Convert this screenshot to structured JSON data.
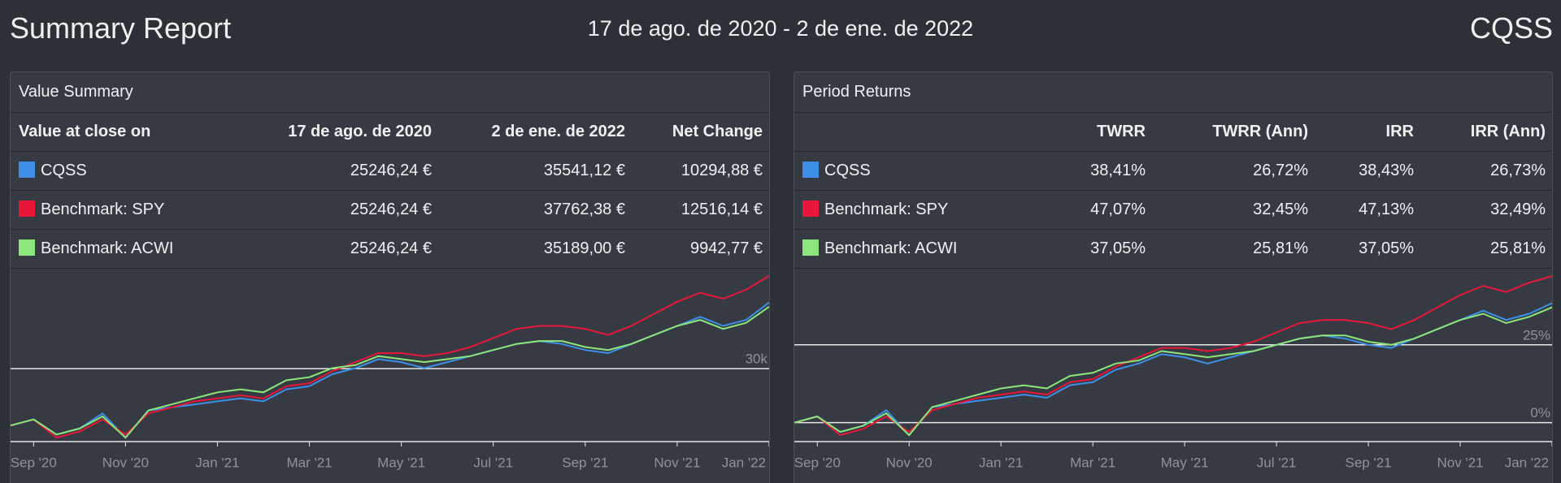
{
  "header": {
    "title": "Summary Report",
    "date_range": "17 de ago. de 2020 - 2 de ene. de 2022",
    "portfolio": "CQSS"
  },
  "value_summary": {
    "title": "Value Summary",
    "columns": [
      "Value at close on",
      "17 de ago. de 2020",
      "2 de ene. de 2022",
      "Net Change"
    ],
    "colors": [
      "#3d8fe8",
      "#e8173a",
      "#8de67a"
    ],
    "rows": [
      [
        "CQSS",
        "25246,24 €",
        "35541,12 €",
        "10294,88 €"
      ],
      [
        "Benchmark: SPY",
        "25246,24 €",
        "37762,38 €",
        "12516,14 €"
      ],
      [
        "Benchmark: ACWI",
        "25246,24 €",
        "35189,00 €",
        "9942,77 €"
      ]
    ]
  },
  "period_returns": {
    "title": "Period Returns",
    "columns": [
      "TWRR",
      "TWRR (Ann)",
      "IRR",
      "IRR (Ann)"
    ],
    "colors": [
      "#3d8fe8",
      "#e8173a",
      "#8de67a"
    ],
    "rows": [
      [
        "CQSS",
        "38,41%",
        "26,72%",
        "38,43%",
        "26,73%"
      ],
      [
        "Benchmark: SPY",
        "47,07%",
        "32,45%",
        "47,13%",
        "32,49%"
      ],
      [
        "Benchmark: ACWI",
        "37,05%",
        "25,81%",
        "37,05%",
        "25,81%"
      ]
    ]
  },
  "chart_data": [
    {
      "type": "line",
      "categories": [
        null,
        "Sep '20",
        null,
        null,
        null,
        "Nov '20",
        null,
        null,
        null,
        "Jan '21",
        null,
        null,
        null,
        "Mar '21",
        null,
        null,
        null,
        "May '21",
        null,
        null,
        null,
        "Jul '21",
        null,
        null,
        null,
        "Sep '21",
        null,
        null,
        null,
        "Nov '21",
        null,
        null,
        null,
        "Jan '22"
      ],
      "ylim": [
        23900,
        38500
      ],
      "yticks": [
        {
          "value": 30000,
          "label": "30k"
        }
      ],
      "grid": true,
      "series": [
        {
          "name": "CQSS",
          "color": "#3d8fe8",
          "values": [
            25246,
            25751,
            24489,
            24994,
            26256,
            24236,
            26508,
            26761,
            27013,
            27266,
            27518,
            27266,
            28276,
            28528,
            29538,
            30043,
            30800,
            30548,
            30043,
            30548,
            31053,
            31558,
            32062,
            32315,
            32062,
            31558,
            31305,
            32062,
            32820,
            33577,
            34335,
            33577,
            34082,
            35541.12
          ]
        },
        {
          "name": "Benchmark: SPY",
          "color": "#e8173a",
          "values": [
            25246,
            25751,
            24236,
            24741,
            25751,
            24489,
            26256,
            26761,
            27266,
            27518,
            27771,
            27518,
            28528,
            28781,
            29790,
            30548,
            31305,
            31305,
            31053,
            31305,
            31810,
            32567,
            33325,
            33577,
            33577,
            33325,
            32820,
            33577,
            34587,
            35597,
            36354,
            35849,
            36607,
            37762.38
          ]
        },
        {
          "name": "Benchmark: ACWI",
          "color": "#8de67a",
          "values": [
            25246,
            25751,
            24489,
            24994,
            26003,
            24236,
            26508,
            27013,
            27518,
            28023,
            28276,
            28023,
            29033,
            29285,
            30043,
            30295,
            31053,
            30800,
            30548,
            30800,
            31053,
            31558,
            32062,
            32315,
            32315,
            31810,
            31558,
            32062,
            32820,
            33577,
            34082,
            33324,
            33836,
            35189
          ]
        }
      ]
    },
    {
      "type": "line",
      "categories": [
        null,
        "Sep '20",
        null,
        null,
        null,
        "Nov '20",
        null,
        null,
        null,
        "Jan '21",
        null,
        null,
        null,
        "Mar '21",
        null,
        null,
        null,
        "May '21",
        null,
        null,
        null,
        "Jul '21",
        null,
        null,
        null,
        "Sep '21",
        null,
        null,
        null,
        "Nov '21",
        null,
        null,
        null,
        "Jan '22"
      ],
      "ylim": [
        -6.1,
        50
      ],
      "yticks": [
        {
          "value": 0,
          "label": "0%"
        },
        {
          "value": 25,
          "label": "25%"
        }
      ],
      "grid": true,
      "series": [
        {
          "name": "CQSS",
          "color": "#3d8fe8",
          "values": [
            0,
            2,
            -3,
            -1,
            4,
            -4,
            5,
            6,
            7,
            8,
            9,
            8,
            12,
            13,
            17,
            19,
            22,
            21,
            19,
            21,
            23,
            25,
            27,
            28,
            27,
            25,
            24,
            27,
            30,
            33,
            36,
            33,
            35,
            38.41
          ]
        },
        {
          "name": "Benchmark: SPY",
          "color": "#e8173a",
          "values": [
            0,
            2,
            -4,
            -2,
            2,
            -3,
            4,
            6,
            8,
            9,
            10,
            9,
            13,
            14,
            18,
            21,
            24,
            24,
            23,
            24,
            26,
            29,
            32,
            33,
            33,
            32,
            30,
            33,
            37,
            41,
            44,
            42,
            45,
            47.07
          ]
        },
        {
          "name": "Benchmark: ACWI",
          "color": "#8de67a",
          "values": [
            0,
            2,
            -3,
            -1,
            3,
            -4,
            5,
            7,
            9,
            11,
            12,
            11,
            15,
            16,
            19,
            20,
            23,
            22,
            21,
            22,
            23,
            25,
            27,
            28,
            28,
            26,
            25,
            27,
            30,
            33,
            35,
            32,
            34,
            37.05
          ]
        }
      ]
    }
  ]
}
